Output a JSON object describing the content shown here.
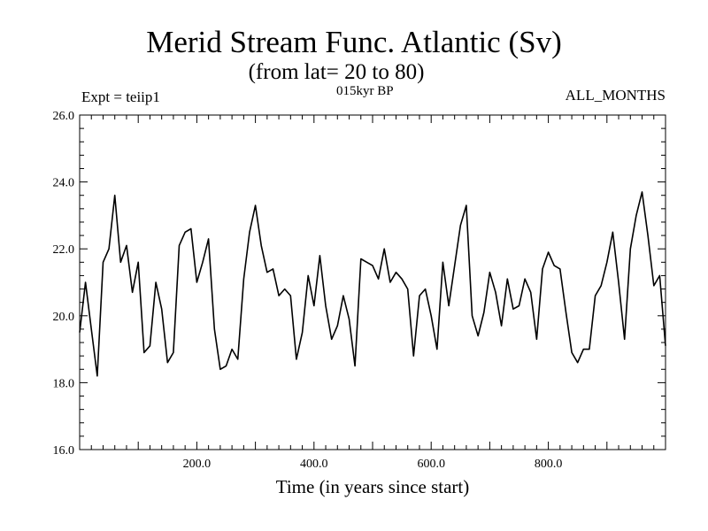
{
  "header": {
    "title": "Merid Stream Func. Atlantic (Sv)",
    "subtitle": "(from lat= 20 to 80)",
    "experiment": "Expt = teiip1",
    "period": "015kyr BP",
    "months": "ALL_MONTHS"
  },
  "chart_data": {
    "type": "line",
    "title": "Merid Stream Func. Atlantic (Sv)",
    "subtitle": "(from lat= 20 to 80)",
    "xlabel": "Time (in years since start)",
    "ylabel": "",
    "xlim": [
      0,
      1000
    ],
    "ylim": [
      16.0,
      26.0
    ],
    "x_ticks": [
      "200.0",
      "400.0",
      "600.0",
      "800.0"
    ],
    "y_ticks": [
      "16.0",
      "18.0",
      "20.0",
      "22.0",
      "24.0",
      "26.0"
    ],
    "grid": false,
    "series": [
      {
        "x": [
          0,
          10,
          20,
          30,
          40,
          50,
          60,
          70,
          80,
          90,
          100,
          110,
          120,
          130,
          140,
          150,
          160,
          170,
          180,
          190,
          200,
          210,
          220,
          230,
          240,
          250,
          260,
          270,
          280,
          290,
          300,
          310,
          320,
          330,
          340,
          350,
          360,
          370,
          380,
          390,
          400,
          410,
          420,
          430,
          440,
          450,
          460,
          470,
          480,
          490,
          500,
          510,
          520,
          530,
          540,
          550,
          560,
          570,
          580,
          590,
          600,
          610,
          620,
          630,
          640,
          650,
          660,
          670,
          680,
          690,
          700,
          710,
          720,
          730,
          740,
          750,
          760,
          770,
          780,
          790,
          800,
          810,
          820,
          830,
          840,
          850,
          860,
          870,
          880,
          890,
          900,
          910,
          920,
          930,
          940,
          950,
          960,
          970,
          980,
          990,
          1000
        ],
        "values": [
          19.5,
          21.0,
          19.6,
          18.2,
          21.6,
          22.0,
          23.6,
          21.6,
          22.1,
          20.7,
          21.6,
          18.9,
          19.1,
          21.0,
          20.2,
          18.6,
          18.9,
          22.1,
          22.5,
          22.6,
          21.0,
          21.6,
          22.3,
          19.6,
          18.4,
          18.5,
          19.0,
          18.7,
          21.1,
          22.5,
          23.3,
          22.1,
          21.3,
          21.4,
          20.6,
          20.8,
          20.6,
          18.7,
          19.5,
          21.2,
          20.3,
          21.8,
          20.3,
          19.3,
          19.7,
          20.6,
          19.9,
          18.5,
          21.7,
          21.6,
          21.5,
          21.1,
          22.0,
          21.0,
          21.3,
          21.1,
          20.8,
          18.8,
          20.6,
          20.8,
          20.0,
          19.0,
          21.6,
          20.3,
          21.5,
          22.7,
          23.3,
          20.0,
          19.4,
          20.1,
          21.3,
          20.7,
          19.7,
          21.1,
          20.2,
          20.3,
          21.1,
          20.7,
          19.3,
          21.4,
          21.9,
          21.5,
          21.4,
          20.1,
          18.9,
          18.6,
          19.0,
          19.0,
          20.6,
          20.9,
          21.6,
          22.5,
          21.0,
          19.3,
          22.0,
          23.0,
          23.7,
          22.4,
          20.9,
          21.2,
          19.1
        ]
      }
    ]
  }
}
